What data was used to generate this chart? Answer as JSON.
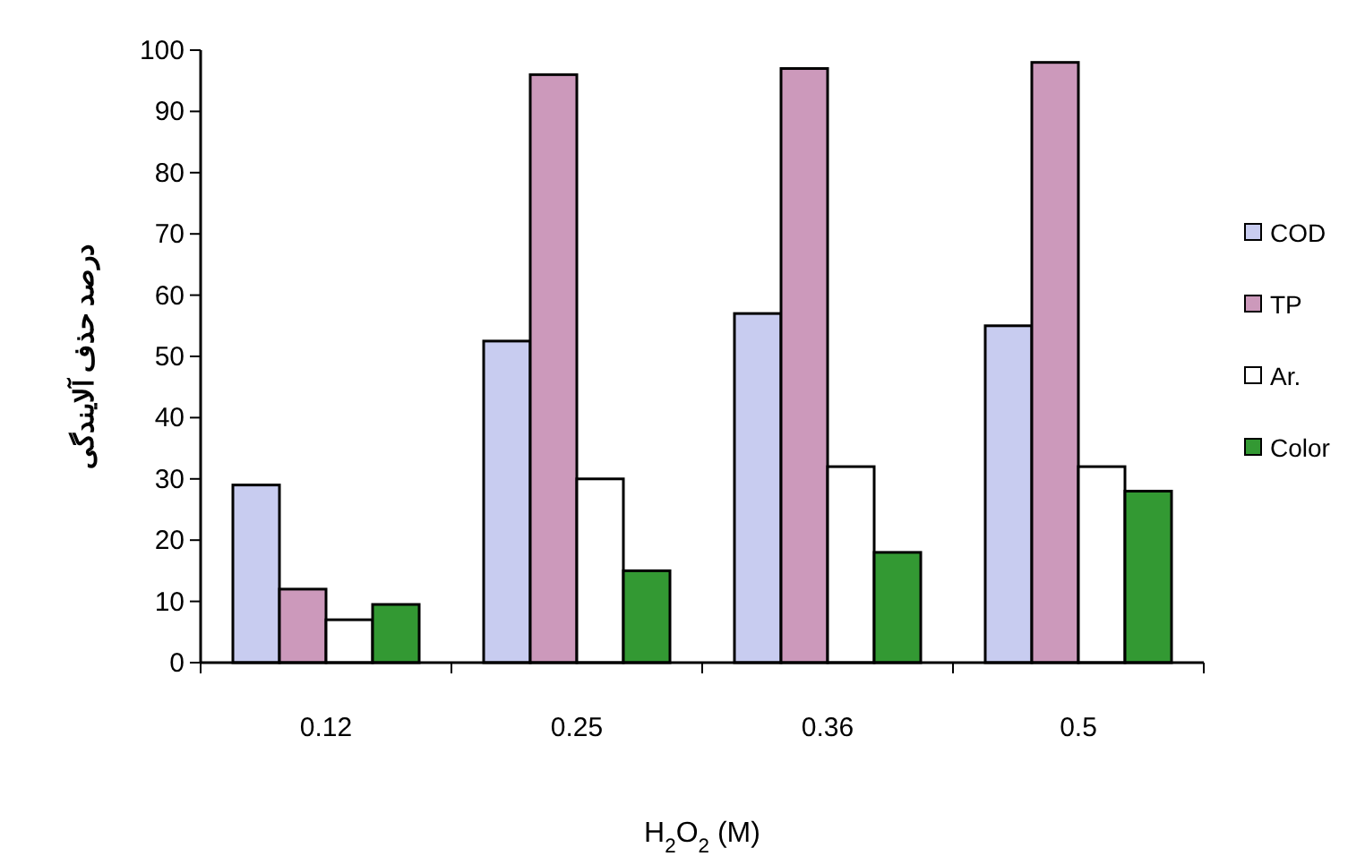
{
  "chart_data": {
    "type": "bar",
    "xlabel": "H$_{2}$O$_{2}$ (M)",
    "ylabel": "درصد حذف آلایندگی",
    "categories": [
      "0.12",
      "0.25",
      "0.36",
      "0.5"
    ],
    "series": [
      {
        "name": "COD",
        "color": "#c8ccf0",
        "values": [
          29,
          52.5,
          57,
          55
        ]
      },
      {
        "name": "TP",
        "color": "#cc99bb",
        "values": [
          12,
          96,
          97,
          98
        ]
      },
      {
        "name": "Ar.",
        "color": "#ffffff",
        "values": [
          7,
          30,
          32,
          32
        ]
      },
      {
        "name": "Color",
        "color": "#339933",
        "values": [
          9.5,
          15,
          18,
          28
        ]
      }
    ],
    "ylim": [
      0,
      100
    ],
    "yticks": [
      0,
      10,
      20,
      30,
      40,
      50,
      60,
      70,
      80,
      90,
      100
    ],
    "legend": "right",
    "grid": false
  }
}
